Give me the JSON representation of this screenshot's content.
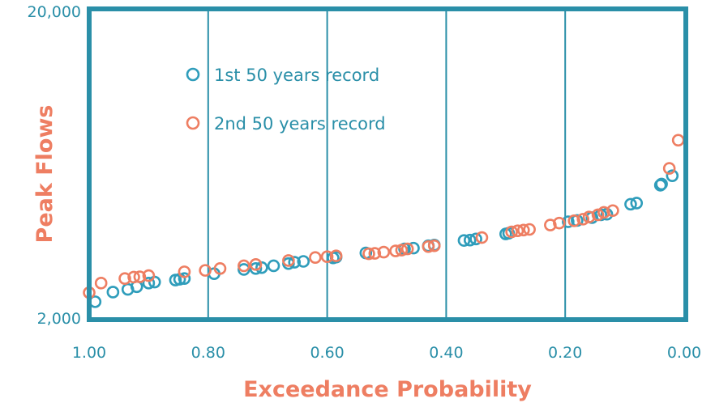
{
  "colors": {
    "frame": "#2a8fa8",
    "series1": "#2f9dbb",
    "series2": "#ee7e62",
    "axis_title": "#ee7e62",
    "tick": "#2a8fa8"
  },
  "chart_data": {
    "type": "scatter",
    "title": "",
    "xlabel": "Exceedance Probability",
    "ylabel": "Peak Flows",
    "x_reversed": true,
    "xlim": [
      1.0,
      0.0
    ],
    "ylim": [
      2000,
      20000
    ],
    "y_scale": "log",
    "grid": "vertical",
    "legend_position": "top-left",
    "x_ticks": [
      "1.00",
      "0.80",
      "0.60",
      "0.40",
      "0.20",
      "0.00"
    ],
    "y_ticks": [
      "20,000",
      "2,000"
    ],
    "series": [
      {
        "name": "1st 50 years record",
        "color": "#2f9dbb",
        "points": [
          [
            0.99,
            2260
          ],
          [
            0.96,
            2430
          ],
          [
            0.935,
            2480
          ],
          [
            0.92,
            2530
          ],
          [
            0.9,
            2600
          ],
          [
            0.89,
            2620
          ],
          [
            0.855,
            2660
          ],
          [
            0.848,
            2675
          ],
          [
            0.84,
            2690
          ],
          [
            0.79,
            2790
          ],
          [
            0.74,
            2880
          ],
          [
            0.72,
            2900
          ],
          [
            0.71,
            2920
          ],
          [
            0.69,
            2960
          ],
          [
            0.665,
            3010
          ],
          [
            0.655,
            3040
          ],
          [
            0.64,
            3060
          ],
          [
            0.59,
            3140
          ],
          [
            0.585,
            3160
          ],
          [
            0.535,
            3260
          ],
          [
            0.47,
            3360
          ],
          [
            0.455,
            3380
          ],
          [
            0.43,
            3440
          ],
          [
            0.42,
            3460
          ],
          [
            0.37,
            3580
          ],
          [
            0.36,
            3590
          ],
          [
            0.35,
            3620
          ],
          [
            0.3,
            3760
          ],
          [
            0.295,
            3780
          ],
          [
            0.195,
            4120
          ],
          [
            0.18,
            4160
          ],
          [
            0.155,
            4250
          ],
          [
            0.14,
            4340
          ],
          [
            0.13,
            4360
          ],
          [
            0.09,
            4700
          ],
          [
            0.08,
            4740
          ],
          [
            0.04,
            5420
          ],
          [
            0.038,
            5470
          ],
          [
            0.02,
            5820
          ]
        ]
      },
      {
        "name": "2nd 50 years record",
        "color": "#ee7e62",
        "points": [
          [
            1.0,
            2420
          ],
          [
            0.98,
            2600
          ],
          [
            0.94,
            2690
          ],
          [
            0.925,
            2720
          ],
          [
            0.915,
            2725
          ],
          [
            0.9,
            2750
          ],
          [
            0.84,
            2830
          ],
          [
            0.805,
            2860
          ],
          [
            0.78,
            2900
          ],
          [
            0.74,
            2960
          ],
          [
            0.72,
            2990
          ],
          [
            0.665,
            3080
          ],
          [
            0.62,
            3150
          ],
          [
            0.6,
            3170
          ],
          [
            0.585,
            3190
          ],
          [
            0.53,
            3240
          ],
          [
            0.52,
            3250
          ],
          [
            0.505,
            3280
          ],
          [
            0.485,
            3310
          ],
          [
            0.475,
            3330
          ],
          [
            0.465,
            3360
          ],
          [
            0.43,
            3420
          ],
          [
            0.42,
            3440
          ],
          [
            0.34,
            3660
          ],
          [
            0.29,
            3820
          ],
          [
            0.28,
            3850
          ],
          [
            0.27,
            3870
          ],
          [
            0.26,
            3890
          ],
          [
            0.225,
            4020
          ],
          [
            0.21,
            4080
          ],
          [
            0.185,
            4150
          ],
          [
            0.17,
            4200
          ],
          [
            0.16,
            4270
          ],
          [
            0.145,
            4340
          ],
          [
            0.135,
            4420
          ],
          [
            0.12,
            4480
          ],
          [
            0.025,
            6150
          ],
          [
            0.01,
            7600
          ]
        ]
      }
    ]
  }
}
